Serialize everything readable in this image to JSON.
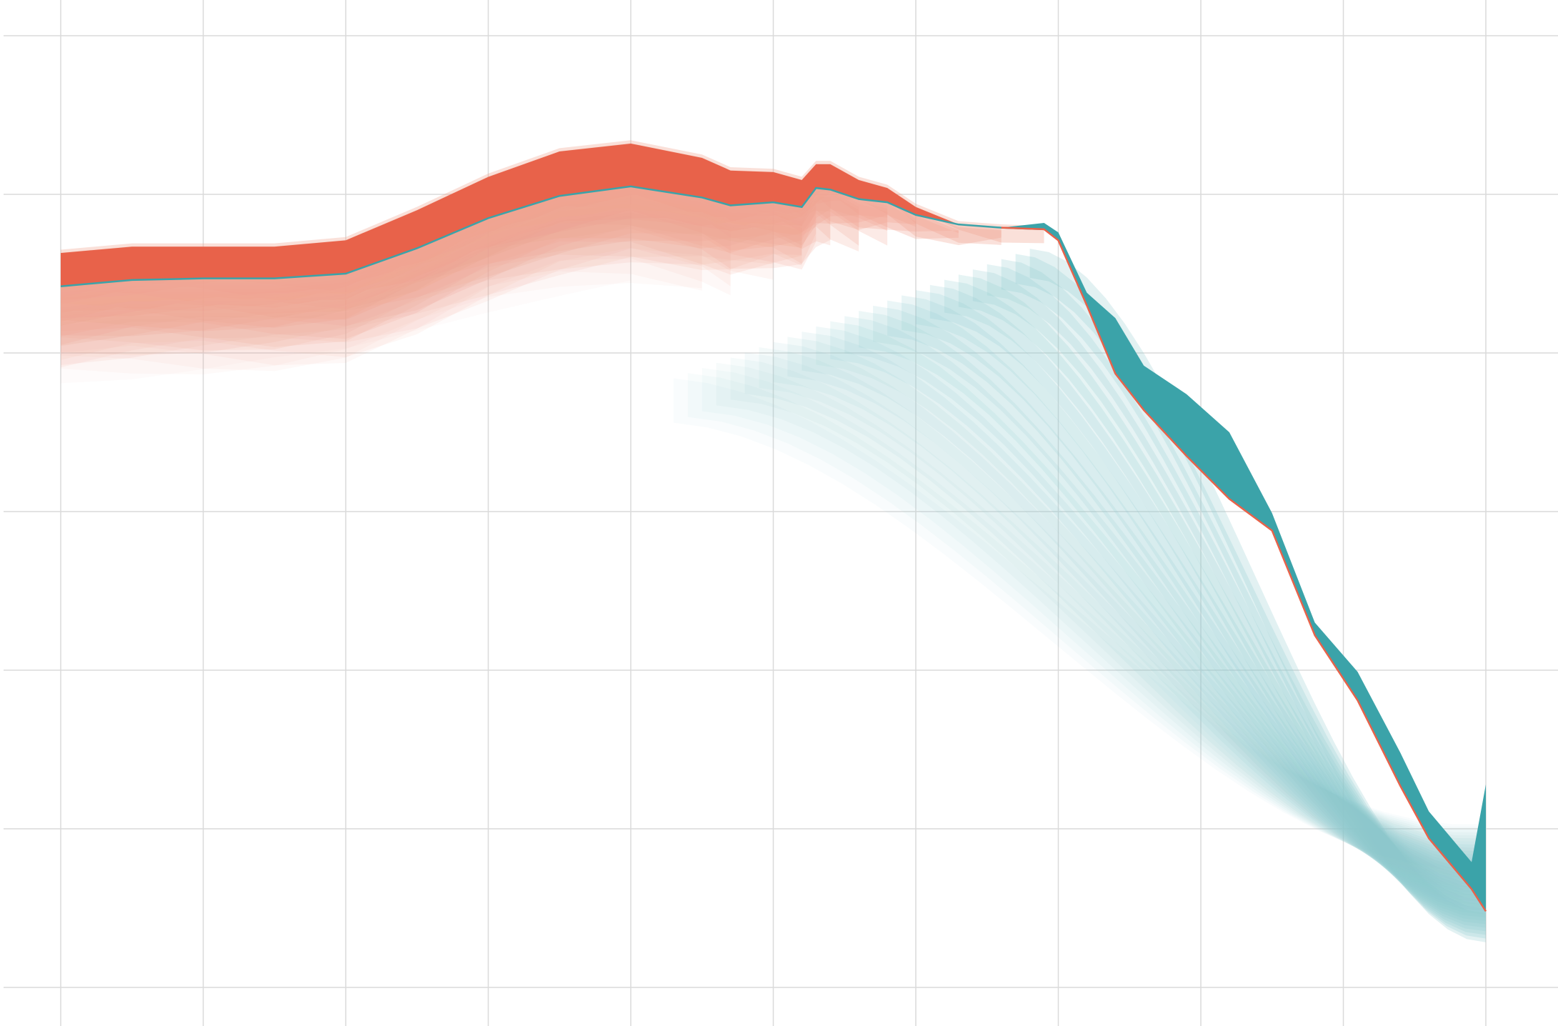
{
  "chart_data": {
    "type": "area",
    "title": "",
    "xlabel": "",
    "ylabel": "",
    "x_range": [
      0,
      10
    ],
    "y_range": [
      0,
      6
    ],
    "grid": true,
    "legend": "none",
    "series": [
      {
        "role": "main-band",
        "color": "#e8624a",
        "x": [
          0,
          0.5,
          1,
          1.5,
          2,
          2.5,
          3,
          3.5,
          4,
          4.5,
          4.7,
          5,
          5.2,
          5.3,
          5.4,
          5.6,
          5.8,
          6,
          6.3,
          6.6,
          6.9
        ],
        "lower": [
          4.42,
          4.46,
          4.47,
          4.47,
          4.5,
          4.66,
          4.85,
          4.99,
          5.05,
          4.98,
          4.93,
          4.95,
          4.92,
          5.04,
          5.03,
          4.97,
          4.95,
          4.87,
          4.81,
          4.79,
          4.78
        ],
        "upper": [
          4.63,
          4.67,
          4.67,
          4.67,
          4.71,
          4.9,
          5.11,
          5.27,
          5.32,
          5.23,
          5.15,
          5.14,
          5.09,
          5.19,
          5.19,
          5.09,
          5.04,
          4.92,
          4.81,
          4.79,
          4.78
        ]
      },
      {
        "role": "main-band",
        "color": "#3ba3a9",
        "x": [
          6.6,
          6.9,
          7.0,
          7.2,
          7.4,
          7.6,
          7.9,
          8.2,
          8.5,
          8.8,
          9.1,
          9.4,
          9.6,
          9.9,
          10
        ],
        "lower": [
          4.79,
          4.78,
          4.71,
          4.3,
          3.87,
          3.64,
          3.35,
          3.08,
          2.88,
          2.22,
          1.81,
          1.27,
          0.94,
          0.62,
          0.48
        ],
        "upper": [
          4.79,
          4.82,
          4.76,
          4.38,
          4.22,
          3.92,
          3.74,
          3.5,
          2.99,
          2.3,
          1.99,
          1.48,
          1.11,
          0.79,
          1.28
        ]
      }
    ],
    "colors": {
      "red": "#e8624a",
      "teal": "#3ba3a9",
      "light_red": "#f1a593",
      "light_teal": "#8fcbcf",
      "grid": "#dadada"
    }
  }
}
